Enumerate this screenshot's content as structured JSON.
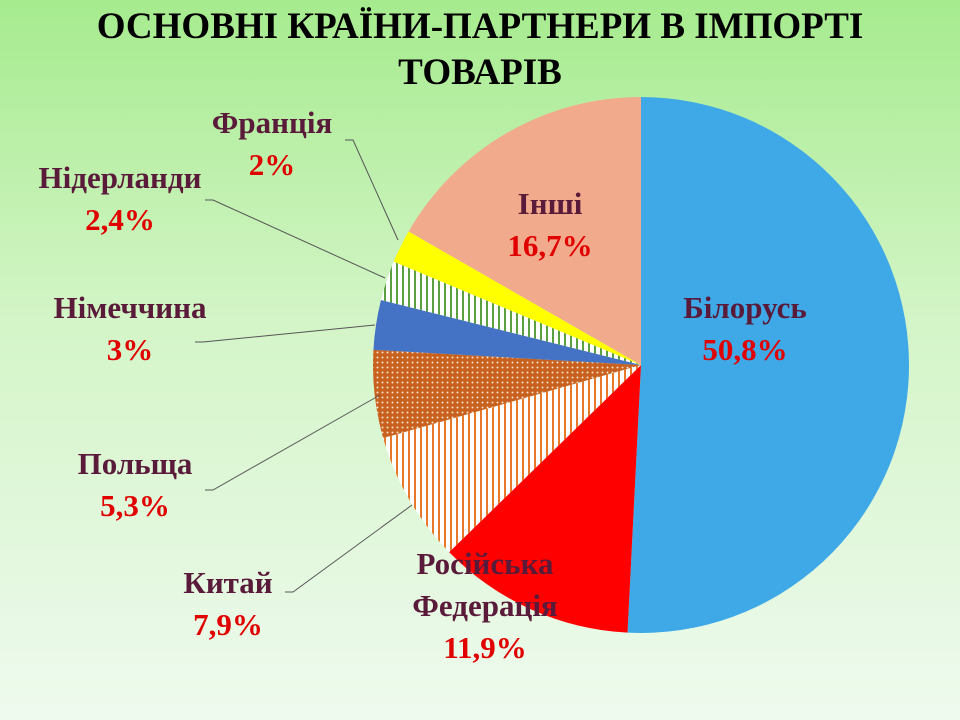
{
  "chart_data": {
    "type": "pie",
    "title": "ОСНОВНІ КРАЇНИ-ПАРТНЕРИ В ІМПОРТІ ТОВАРІВ",
    "categories": [
      "Білорусь",
      "Російська Федерація",
      "Китай",
      "Польща",
      "Німеччина",
      "Нідерланди",
      "Франція",
      "Інші"
    ],
    "values": [
      50.8,
      11.9,
      7.9,
      5.3,
      3,
      2.4,
      2,
      16.7
    ],
    "value_labels": [
      "50,8%",
      "11,9%",
      "7,9%",
      "5,3%",
      "3%",
      "2,4%",
      "2%",
      "16,7%"
    ],
    "colors": [
      "#3fa9e8",
      "#ff0000",
      "#e8782a",
      "#c8601e",
      "#4472c4",
      "#5aa040",
      "#ffff00",
      "#f2aa8c"
    ],
    "patterns": [
      null,
      null,
      "stripes",
      "dots",
      null,
      "stripes",
      null,
      null
    ]
  }
}
